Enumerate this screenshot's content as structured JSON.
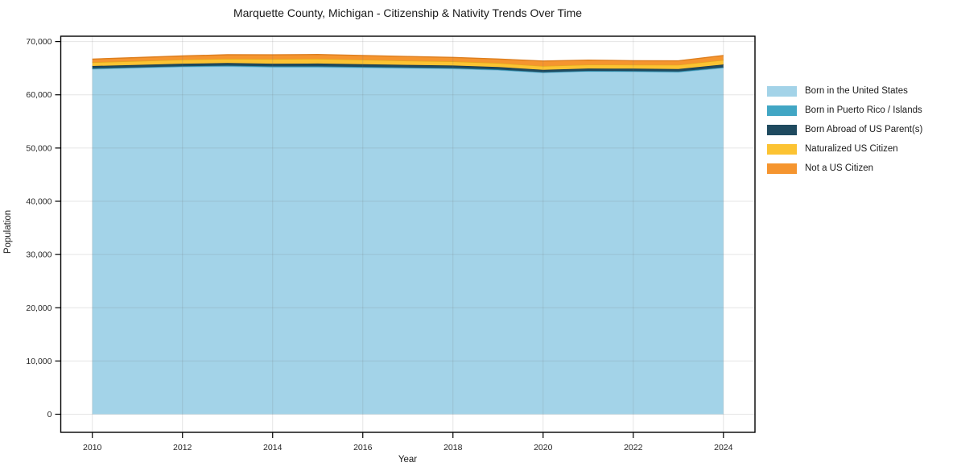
{
  "page_title": "Marquette County, Michigan - Citizenship & Nativity Trends Over Time",
  "chart_data": {
    "type": "area",
    "stacked": true,
    "title": "Marquette County, Michigan - Citizenship & Nativity Trends Over Time",
    "xlabel": "Year",
    "ylabel": "Population",
    "x": [
      2010,
      2011,
      2012,
      2013,
      2014,
      2015,
      2016,
      2017,
      2018,
      2019,
      2020,
      2021,
      2022,
      2023,
      2024
    ],
    "series": [
      {
        "name": "Born in the United States",
        "color": "#A3D3E8",
        "edge_color": "#7EB9D6",
        "values": [
          64850,
          65050,
          65250,
          65350,
          65200,
          65200,
          65100,
          65000,
          64900,
          64650,
          64150,
          64400,
          64350,
          64250,
          65050
        ]
      },
      {
        "name": "Born in Puerto Rico / Islands",
        "color": "#41A6C4",
        "edge_color": "#2F8BA8",
        "values": [
          100,
          110,
          120,
          130,
          150,
          150,
          140,
          130,
          120,
          110,
          100,
          100,
          110,
          120,
          120
        ]
      },
      {
        "name": "Born Abroad of US Parent(s)",
        "color": "#1F4A5F",
        "edge_color": "#16374A",
        "values": [
          450,
          460,
          480,
          490,
          500,
          520,
          500,
          480,
          470,
          460,
          450,
          440,
          450,
          470,
          520
        ]
      },
      {
        "name": "Naturalized US Citizen",
        "color": "#FCC332",
        "edge_color": "#E3A81C",
        "values": [
          700,
          720,
          750,
          800,
          850,
          900,
          850,
          800,
          780,
          750,
          700,
          720,
          740,
          780,
          850
        ]
      },
      {
        "name": "Not a US Citizen",
        "color": "#F5952F",
        "edge_color": "#DD7E1E",
        "values": [
          600,
          650,
          700,
          750,
          800,
          800,
          800,
          780,
          750,
          750,
          950,
          850,
          750,
          750,
          850
        ]
      }
    ],
    "x_ticks": [
      2010,
      2012,
      2014,
      2016,
      2018,
      2020,
      2022,
      2024
    ],
    "x_tick_labels": [
      "2010",
      "2012",
      "2014",
      "2016",
      "2018",
      "2020",
      "2022",
      "2024"
    ],
    "y_ticks": [
      0,
      10000,
      20000,
      30000,
      40000,
      50000,
      60000,
      70000
    ],
    "y_tick_labels": [
      "0",
      "10,000",
      "20,000",
      "30,000",
      "40,000",
      "50,000",
      "60,000",
      "70,000"
    ],
    "xlim": [
      2009.3,
      2024.7
    ],
    "ylim": [
      -3400,
      71000
    ],
    "grid": true,
    "legend_position": "right-outside",
    "text_color": "#262626",
    "grid_color": "rgba(110,110,110,0.18)",
    "spine_color": "#000000"
  }
}
